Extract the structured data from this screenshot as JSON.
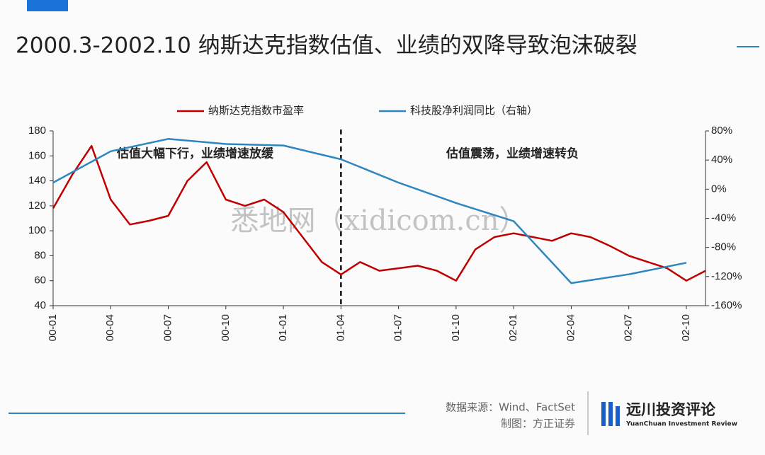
{
  "chart_data": {
    "type": "line",
    "title": "2000.3-2002.10 纳斯达克指数估值、业绩的双降导致泡沫破裂",
    "x": [
      "00-01",
      "00-02",
      "00-03",
      "00-04",
      "00-05",
      "00-06",
      "00-07",
      "00-08",
      "00-09",
      "00-10",
      "00-11",
      "00-12",
      "01-01",
      "01-02",
      "01-03",
      "01-04",
      "01-05",
      "01-06",
      "01-07",
      "01-08",
      "01-09",
      "01-10",
      "01-11",
      "01-12",
      "02-01",
      "02-02",
      "02-03",
      "02-04",
      "02-05",
      "02-06",
      "02-07",
      "02-08",
      "02-09",
      "02-10",
      "02-11"
    ],
    "series": [
      {
        "name": "纳斯达克指数市盈率",
        "color": "#c00000",
        "values": [
          118,
          145,
          168,
          125,
          105,
          108,
          112,
          140,
          155,
          125,
          120,
          125,
          115,
          95,
          75,
          65,
          75,
          68,
          70,
          72,
          68,
          60,
          85,
          95,
          98,
          95,
          92,
          98,
          95,
          88,
          80,
          75,
          70,
          60,
          68
        ]
      },
      {
        "name": "科技股净利润同比（右轴）",
        "color": "#2e86c1",
        "axis": "y2",
        "x": [
          "00-01",
          "00-04",
          "00-07",
          "00-10",
          "01-01",
          "01-04",
          "01-07",
          "01-10",
          "02-01",
          "02-04",
          "02-07",
          "02-10"
        ],
        "values": [
          9,
          52,
          69,
          62,
          60,
          41,
          9,
          -19,
          -44,
          -129,
          -117,
          -101
        ]
      }
    ],
    "ylim": [
      40,
      180
    ],
    "yticks": [
      40,
      60,
      80,
      100,
      120,
      140,
      160,
      180
    ],
    "y2lim": [
      -160,
      80
    ],
    "y2ticks": [
      {
        "value": -160,
        "label": "-160%"
      },
      {
        "value": -120,
        "label": "-120%"
      },
      {
        "value": -80,
        "label": "-80%"
      },
      {
        "value": -40,
        "label": "-40%"
      },
      {
        "value": 0,
        "label": "0%"
      },
      {
        "value": 40,
        "label": "40%"
      },
      {
        "value": 80,
        "label": "80%"
      }
    ],
    "xticks": [
      "00-01",
      "00-04",
      "00-07",
      "00-10",
      "01-01",
      "01-04",
      "01-07",
      "01-10",
      "02-01",
      "02-04",
      "02-07",
      "02-10"
    ],
    "vline": "01-04",
    "annotations": [
      "估值大幅下行，业绩增速放缓",
      "估值震荡，业绩增速转负"
    ],
    "watermark": "悉地网（xidicom.cn）",
    "source": "数据来源：Wind、FactSet",
    "credit": "制图：方正证券",
    "brand": "远川投资评论",
    "brand_en": "YuanChuan Investment Review"
  }
}
